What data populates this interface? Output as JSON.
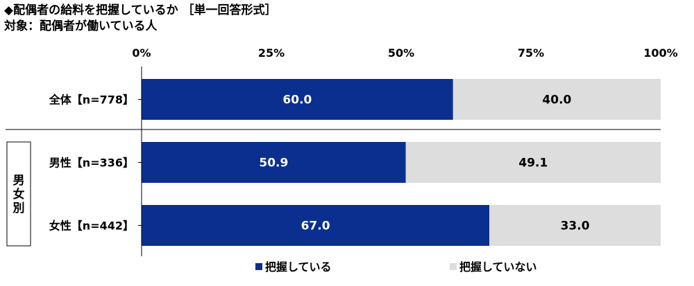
{
  "title": "◆配偶者の給料を把握しているか ［単一回答形式］",
  "subtitle": "対象：配偶者が働いている人",
  "chart_data": {
    "type": "bar",
    "orientation": "horizontal",
    "stacked": true,
    "percent_stacked": true,
    "categories": [
      "全体【n=778】",
      "男性【n=336】",
      "女性【n=442】"
    ],
    "group_label": "男女別",
    "group_members": [
      "男性【n=336】",
      "女性【n=442】"
    ],
    "series": [
      {
        "name": "把握している",
        "values": [
          60.0,
          50.9,
          67.0
        ],
        "color": "#0b2f8e",
        "label_color": "#ffffff"
      },
      {
        "name": "把握していない",
        "values": [
          40.0,
          49.1,
          33.0
        ],
        "color": "#dddddd",
        "label_color": "#000000"
      }
    ],
    "xlim": [
      0,
      100
    ],
    "x_ticks": [
      "0%",
      "25%",
      "50%",
      "75%",
      "100%"
    ],
    "x_tick_values": [
      0,
      25,
      50,
      75,
      100
    ],
    "axis_position": "top",
    "legend_position": "bottom",
    "grid": false
  }
}
